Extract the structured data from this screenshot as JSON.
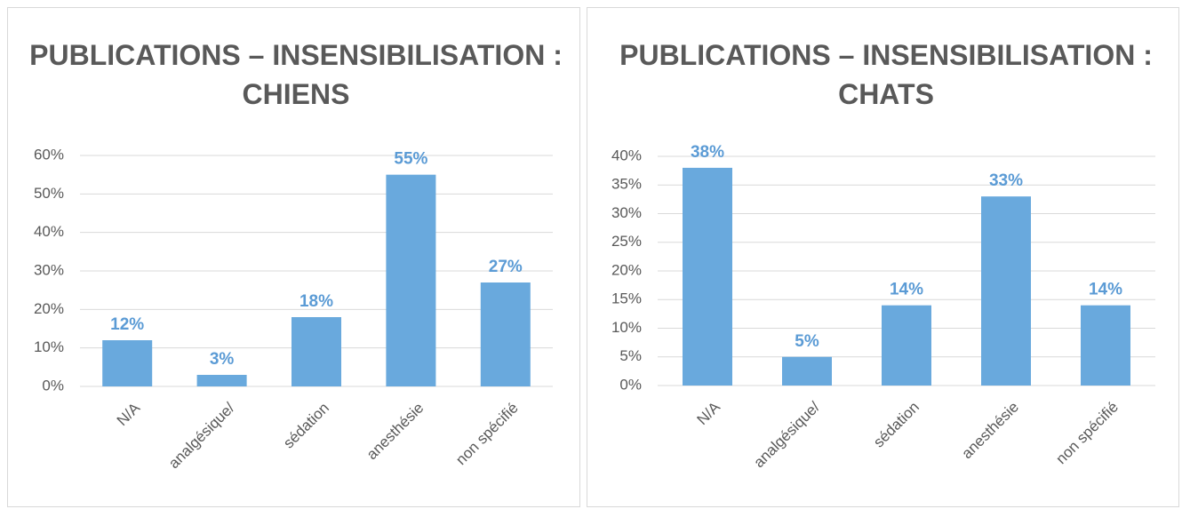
{
  "chart_data": [
    {
      "type": "bar",
      "title": "PUBLICATIONS – INSENSIBILISATION : CHIENS",
      "categories": [
        "N/A",
        "analgésique/",
        "sédation",
        "anesthésie",
        "non spécifié"
      ],
      "values": [
        12,
        3,
        18,
        55,
        27
      ],
      "value_labels": [
        "12%",
        "3%",
        "18%",
        "55%",
        "27%"
      ],
      "color": "#69a9dd",
      "label_color": "#5b9bd5",
      "ylim": [
        0,
        60
      ],
      "yticks": [
        {
          "value": 0,
          "label": "0%"
        },
        {
          "value": 10,
          "label": "10%"
        },
        {
          "value": 20,
          "label": "20%"
        },
        {
          "value": 30,
          "label": "30%"
        },
        {
          "value": 40,
          "label": "40%"
        },
        {
          "value": 50,
          "label": "50%"
        },
        {
          "value": 60,
          "label": "60%"
        }
      ],
      "grid": true
    },
    {
      "type": "bar",
      "title": "PUBLICATIONS – INSENSIBILISATION : CHATS",
      "categories": [
        "N/A",
        "analgésique/",
        "sédation",
        "anesthésie",
        "non spécifié"
      ],
      "values": [
        38,
        5,
        14,
        33,
        14
      ],
      "value_labels": [
        "38%",
        "5%",
        "14%",
        "33%",
        "14%"
      ],
      "color": "#69a9dd",
      "label_color": "#5b9bd5",
      "ylim": [
        0,
        40
      ],
      "yticks": [
        {
          "value": 0,
          "label": "0%"
        },
        {
          "value": 5,
          "label": "5%"
        },
        {
          "value": 10,
          "label": "10%"
        },
        {
          "value": 15,
          "label": "15%"
        },
        {
          "value": 20,
          "label": "20%"
        },
        {
          "value": 25,
          "label": "25%"
        },
        {
          "value": 30,
          "label": "30%"
        },
        {
          "value": 35,
          "label": "35%"
        },
        {
          "value": 40,
          "label": "40%"
        }
      ],
      "grid": true
    }
  ]
}
